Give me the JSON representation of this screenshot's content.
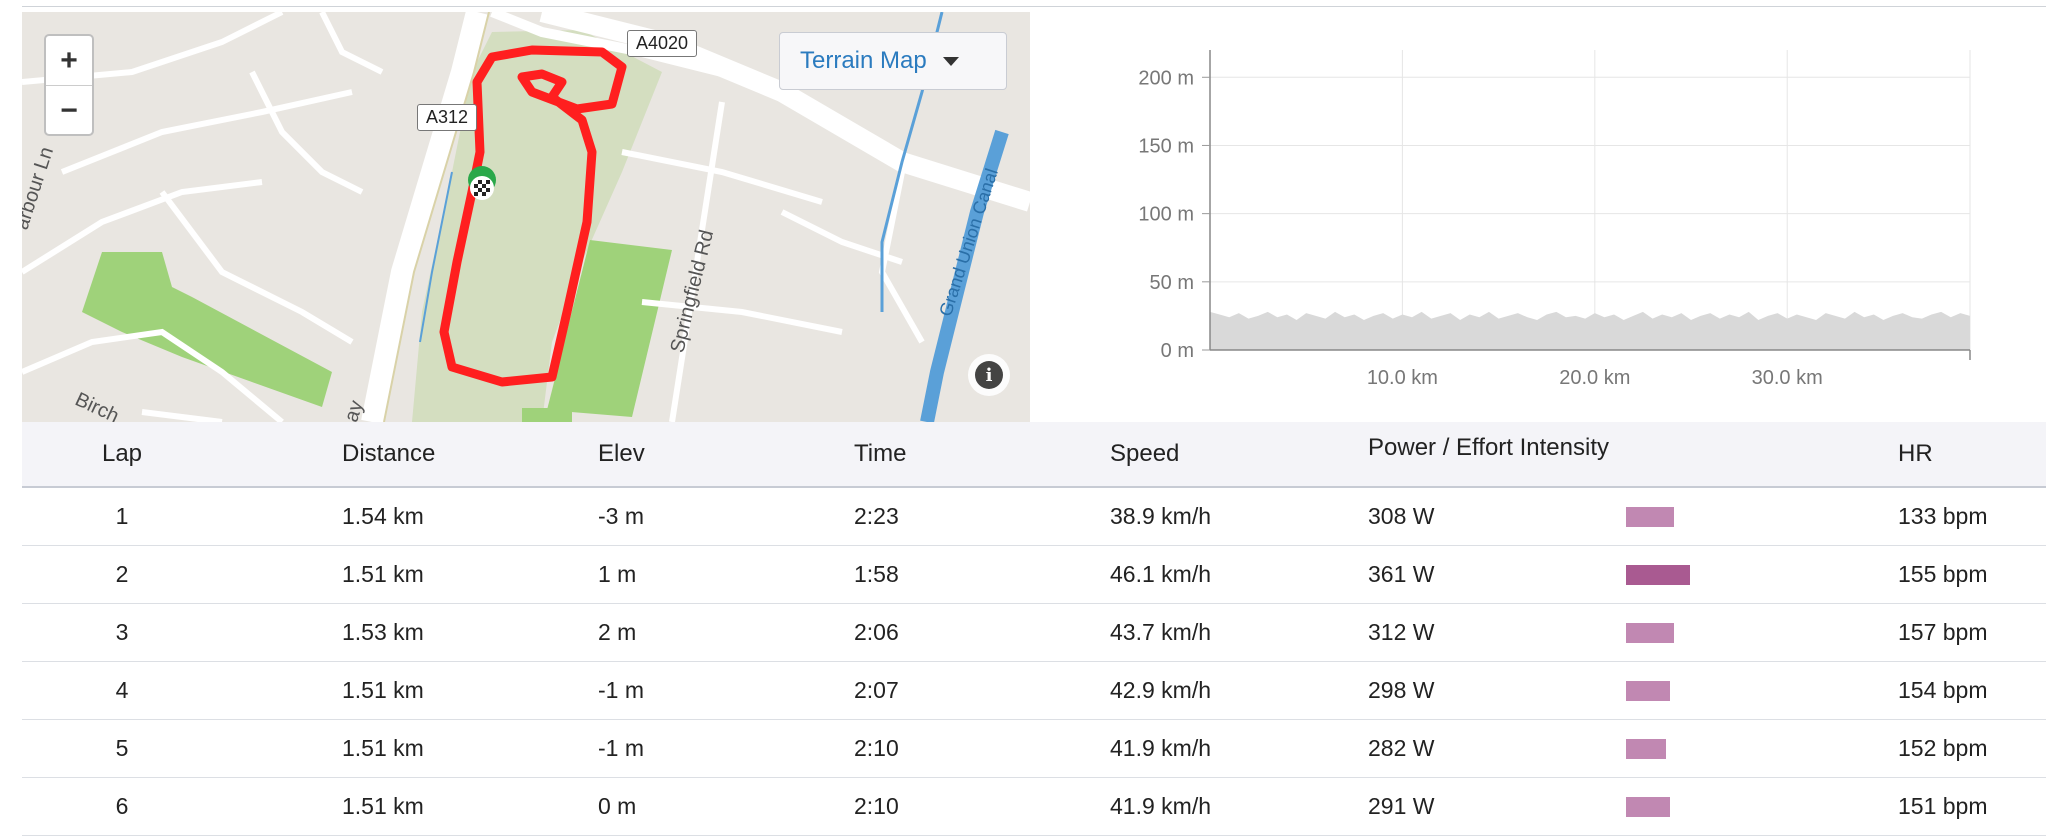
{
  "map": {
    "zoom_in_label": "+",
    "zoom_out_label": "−",
    "map_type_button": "Terrain Map",
    "road_labels": [
      "A4020",
      "A312"
    ],
    "street_labels": [
      "arbour Ln",
      "Springfield Rd",
      "Grand Union Canal",
      "Birch",
      "ay"
    ],
    "info_label": "i",
    "route_color": "#ff1f1f"
  },
  "chart_data": {
    "type": "area",
    "x_tick_labels": [
      "10.0 km",
      "20.0 km",
      "30.0 km"
    ],
    "x_ticks": [
      10,
      20,
      30
    ],
    "xlim": [
      0,
      39.5
    ],
    "y_tick_labels": [
      "0 m",
      "50 m",
      "100 m",
      "150 m",
      "200 m"
    ],
    "y_ticks": [
      0,
      50,
      100,
      150,
      200
    ],
    "ylim": [
      0,
      220
    ],
    "grid": true,
    "fill_color": "#d9d9d9",
    "x": [
      0,
      0.5,
      1,
      1.5,
      2,
      2.5,
      3,
      3.5,
      4,
      4.5,
      5,
      5.5,
      6,
      6.5,
      7,
      7.5,
      8,
      8.5,
      9,
      9.5,
      10,
      10.5,
      11,
      11.5,
      12,
      12.5,
      13,
      13.5,
      14,
      14.5,
      15,
      15.5,
      16,
      16.5,
      17,
      17.5,
      18,
      18.5,
      19,
      19.5,
      20,
      20.5,
      21,
      21.5,
      22,
      22.5,
      23,
      23.5,
      24,
      24.5,
      25,
      25.5,
      26,
      26.5,
      27,
      27.5,
      28,
      28.5,
      29,
      29.5,
      30,
      30.5,
      31,
      31.5,
      32,
      32.5,
      33,
      33.5,
      34,
      34.5,
      35,
      35.5,
      36,
      36.5,
      37,
      37.5,
      38,
      38.5,
      39,
      39.5
    ],
    "y": [
      28,
      26,
      24,
      27,
      23,
      25,
      28,
      24,
      26,
      22,
      27,
      25,
      23,
      28,
      24,
      26,
      22,
      25,
      27,
      23,
      26,
      24,
      28,
      23,
      25,
      27,
      22,
      26,
      24,
      28,
      23,
      25,
      27,
      24,
      22,
      26,
      28,
      24,
      25,
      23,
      27,
      24,
      26,
      22,
      25,
      28,
      23,
      26,
      24,
      27,
      22,
      25,
      27,
      23,
      26,
      24,
      28,
      22,
      25,
      27,
      23,
      26,
      24,
      22,
      27,
      25,
      23,
      28,
      24,
      26,
      22,
      25,
      27,
      24,
      23,
      26,
      28,
      24,
      27,
      25
    ]
  },
  "table": {
    "headers": {
      "lap": "Lap",
      "distance": "Distance",
      "elev": "Elev",
      "time": "Time",
      "speed": "Speed",
      "power": "Power / Effort Intensity",
      "hr": "HR"
    },
    "rows": [
      {
        "lap": "1",
        "distance": "1.54 km",
        "elev": "-3 m",
        "time": "2:23",
        "speed": "38.9 km/h",
        "power": "308 W",
        "intensity": 0.75,
        "hr": "133 bpm"
      },
      {
        "lap": "2",
        "distance": "1.51 km",
        "elev": "1 m",
        "time": "1:58",
        "speed": "46.1 km/h",
        "power": "361 W",
        "intensity": 1.0,
        "hr": "155 bpm"
      },
      {
        "lap": "3",
        "distance": "1.53 km",
        "elev": "2 m",
        "time": "2:06",
        "speed": "43.7 km/h",
        "power": "312 W",
        "intensity": 0.75,
        "hr": "157 bpm"
      },
      {
        "lap": "4",
        "distance": "1.51 km",
        "elev": "-1 m",
        "time": "2:07",
        "speed": "42.9 km/h",
        "power": "298 W",
        "intensity": 0.69,
        "hr": "154 bpm"
      },
      {
        "lap": "5",
        "distance": "1.51 km",
        "elev": "-1 m",
        "time": "2:10",
        "speed": "41.9 km/h",
        "power": "282 W",
        "intensity": 0.63,
        "hr": "152 bpm"
      },
      {
        "lap": "6",
        "distance": "1.51 km",
        "elev": "0 m",
        "time": "2:10",
        "speed": "41.9 km/h",
        "power": "291 W",
        "intensity": 0.69,
        "hr": "151 bpm"
      }
    ]
  }
}
